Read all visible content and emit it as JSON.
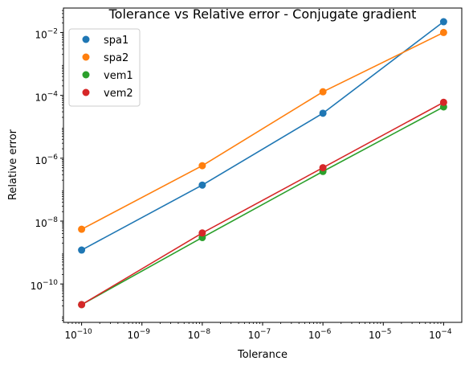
{
  "chart_data": {
    "type": "line",
    "title": "Tolerance vs Relative error - Conjugate gradient",
    "xlabel": "Tolerance",
    "ylabel": "Relative error",
    "xscale": "log",
    "yscale": "log",
    "xlim": [
      5e-11,
      0.0002
    ],
    "ylim": [
      6e-12,
      0.06
    ],
    "x": [
      1e-10,
      1e-08,
      1e-06,
      0.0001
    ],
    "x_major_ticks": [
      {
        "value": 1e-10,
        "base": "10",
        "exp": "−10"
      },
      {
        "value": 1e-09,
        "base": "10",
        "exp": "−9"
      },
      {
        "value": 1e-08,
        "base": "10",
        "exp": "−8"
      },
      {
        "value": 1e-07,
        "base": "10",
        "exp": "−7"
      },
      {
        "value": 1e-06,
        "base": "10",
        "exp": "−6"
      },
      {
        "value": 1e-05,
        "base": "10",
        "exp": "−5"
      },
      {
        "value": 0.0001,
        "base": "10",
        "exp": "−4"
      }
    ],
    "y_major_ticks": [
      {
        "value": 1e-10,
        "base": "10",
        "exp": "−10"
      },
      {
        "value": 1e-08,
        "base": "10",
        "exp": "−8"
      },
      {
        "value": 1e-06,
        "base": "10",
        "exp": "−6"
      },
      {
        "value": 0.0001,
        "base": "10",
        "exp": "−4"
      },
      {
        "value": 0.01,
        "base": "10",
        "exp": "−2"
      }
    ],
    "series": [
      {
        "name": "spa1",
        "color": "#1f77b4",
        "values": [
          1.2e-09,
          1.4e-07,
          2.7e-05,
          0.022
        ]
      },
      {
        "name": "spa2",
        "color": "#ff7f0e",
        "values": [
          5.5e-09,
          5.8e-07,
          0.00013,
          0.01
        ]
      },
      {
        "name": "vem1",
        "color": "#2ca02c",
        "values": [
          2.2e-11,
          3e-09,
          3.8e-07,
          4.3e-05
        ]
      },
      {
        "name": "vem2",
        "color": "#d62728",
        "values": [
          2.2e-11,
          4.2e-09,
          5e-07,
          6e-05
        ]
      }
    ],
    "grid": false,
    "legend_position": "top-left"
  }
}
